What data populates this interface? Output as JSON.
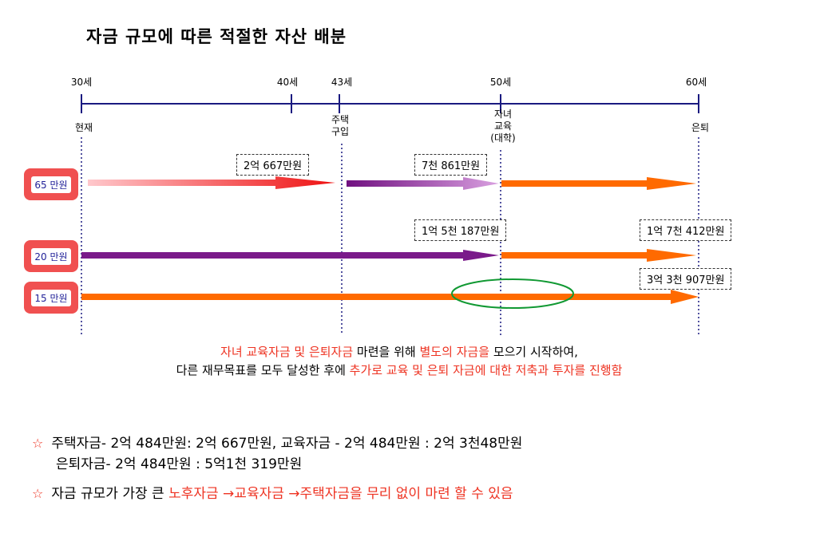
{
  "title": "자금 규모에 따른 적절한 자산 배분",
  "timeline": {
    "ages": [
      "30세",
      "40세",
      "43세",
      "50세",
      "60세"
    ],
    "milestones": {
      "now": "현재",
      "house": [
        "주택",
        "구입"
      ],
      "edu": [
        "자녀",
        "교육",
        "(대학)"
      ],
      "retire": "은퇴"
    }
  },
  "amounts": {
    "a1": "2억 667만원",
    "a2": "7천 861만원",
    "a3": "1억 5천 187만원",
    "a4": "1억 7천 412만원",
    "a5": "3억 3천 907만원"
  },
  "rows": [
    "65 만원",
    "20 만원",
    "15 만원"
  ],
  "summary": {
    "line1": [
      "자녀 교육자금 및 은퇴자금",
      " 마련을  위해 ",
      "별도의 자금을",
      " 모으기 시작하여,"
    ],
    "line2": [
      "다른 재무목표를 모두 달성한 후에 ",
      "추가로 교육 및 은퇴 자금에 대한 저축과 투자를 진행함"
    ]
  },
  "notes": {
    "star": "☆",
    "note1_line1": "주택자금- 2억 484만원: 2억 667만원, 교육자금 - 2억 484만원 : 2억 3천48만원",
    "note1_line2": "은퇴자금- 2억 484만원 : 5억1천 319만원",
    "note2_plain": "자금 규모가 가장 큰 ",
    "note2_red": "노후자금 →교육자금 →주택자금을 무리 없이 마련 할 수 있음"
  },
  "colors": {
    "timeline": "#1a1a80",
    "red": "#ee3322",
    "purple": "#7a1a8a",
    "orange": "#ff6a00",
    "badge": "#f05050"
  }
}
